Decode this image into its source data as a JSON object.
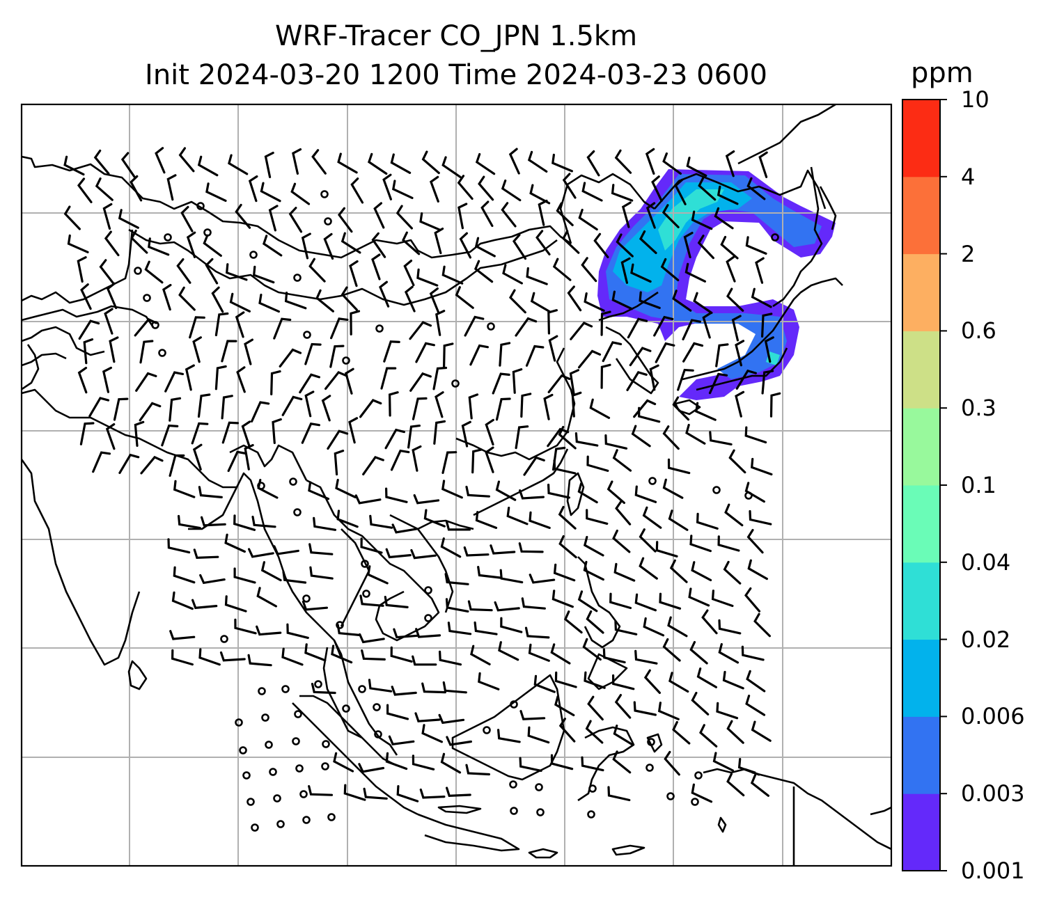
{
  "title": {
    "line1": "WRF-Tracer CO_JPN 1.5km",
    "line2": "Init 2024-03-20 1200 Time 2024-03-23 0600"
  },
  "colorbar": {
    "unit": "ppm",
    "levels": [
      "0.001",
      "0.003",
      "0.006",
      "0.02",
      "0.04",
      "0.1",
      "0.3",
      "0.6",
      "2",
      "4",
      "10"
    ],
    "colors": [
      "#6429fa",
      "#3273f2",
      "#02b2ec",
      "#2fdfd6",
      "#6afcb7",
      "#98f99c",
      "#cde087",
      "#fdaf61",
      "#fc7039",
      "#fc2c14"
    ]
  },
  "map": {
    "plume_colors": [
      "#6429fa",
      "#3273f2",
      "#02b2ec",
      "#2fdfd6"
    ]
  }
}
